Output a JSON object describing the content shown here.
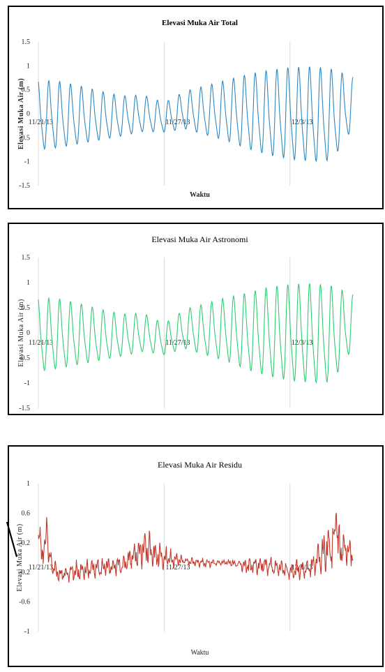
{
  "chart_data": [
    {
      "type": "line",
      "title": "Elevasi Muka Air Total",
      "xlabel": "Waktu",
      "ylabel": "Elevasi Muka Air (m)",
      "ylim": [
        -1.5,
        1.5
      ],
      "yticks": [
        "1.5",
        "1",
        "0.5",
        "0",
        "-0.5",
        "-1",
        "-1.5"
      ],
      "xtick_labels": [
        "11/21/13",
        "11/27/13",
        "12/3/13"
      ],
      "x_start": "11/21/13",
      "x_end": "12/6/13",
      "color": "#2e86c1",
      "grid": "vertical",
      "series": [
        {
          "x": [
            "11/21/13",
            "11/22/13",
            "11/23/13",
            "11/24/13",
            "11/25/13",
            "11/26/13",
            "11/27/13",
            "11/28/13",
            "11/29/13",
            "11/30/13",
            "12/1/13",
            "12/2/13",
            "12/3/13",
            "12/4/13",
            "12/5/13",
            "12/6/13"
          ],
          "daily_high": [
            0.75,
            0.72,
            0.62,
            0.5,
            0.4,
            0.42,
            0.25,
            0.5,
            0.62,
            0.75,
            0.88,
            0.97,
            1.03,
            1.05,
            1.0,
            0.8
          ],
          "daily_low": [
            -0.9,
            -0.85,
            -0.75,
            -0.65,
            -0.55,
            -0.45,
            -0.45,
            -0.4,
            -0.55,
            -0.7,
            -0.9,
            -1.05,
            -1.15,
            -1.2,
            -1.18,
            -0.4
          ]
        }
      ]
    },
    {
      "type": "line",
      "title": "Elevasi Muka Air Astronomi",
      "xlabel": "Waktu",
      "ylabel": "Elevasi Muka Air (m)",
      "ylim": [
        -1.5,
        1.5
      ],
      "yticks": [
        "1.5",
        "1",
        "0.5",
        "0",
        "-0.5",
        "-1",
        "-1.5"
      ],
      "xtick_labels": [
        "11/21/13",
        "11/27/13",
        "12/3/13"
      ],
      "x_start": "11/21/13",
      "x_end": "12/6/13",
      "color": "#2ecc71",
      "grid": "vertical",
      "series": [
        {
          "x": [
            "11/21/13",
            "11/22/13",
            "11/23/13",
            "11/24/13",
            "11/25/13",
            "11/26/13",
            "11/27/13",
            "11/28/13",
            "11/29/13",
            "11/30/13",
            "12/1/13",
            "12/2/13",
            "12/3/13",
            "12/4/13",
            "12/5/13",
            "12/6/13"
          ],
          "daily_high": [
            0.75,
            0.72,
            0.62,
            0.5,
            0.4,
            0.42,
            0.2,
            0.5,
            0.62,
            0.75,
            0.85,
            0.97,
            1.03,
            1.05,
            1.0,
            0.8
          ],
          "daily_low": [
            -0.92,
            -0.85,
            -0.75,
            -0.65,
            -0.55,
            -0.45,
            -0.5,
            -0.4,
            -0.55,
            -0.7,
            -0.9,
            -1.05,
            -1.15,
            -1.2,
            -1.18,
            -0.4
          ]
        }
      ]
    },
    {
      "type": "line",
      "title": "Elevasi Muka Air Residu",
      "xlabel": "Waktu",
      "ylabel": "Elevasi Muka Air (m)",
      "ylim": [
        -1,
        1
      ],
      "yticks": [
        "1",
        "0.6",
        "0.2",
        "-0.2",
        "-0.6",
        "-1"
      ],
      "xtick_labels": [
        "11/21/13",
        "11/27/13",
        "12/3/13"
      ],
      "x_start": "11/21/13",
      "x_end": "12/6/13",
      "color": "#c0392b",
      "grid": "vertical",
      "series": [
        {
          "x": [
            "11/21/13",
            "11/22/13",
            "11/23/13",
            "11/24/13",
            "11/25/13",
            "11/26/13",
            "11/27/13",
            "11/28/13",
            "11/29/13",
            "11/30/13",
            "12/1/13",
            "12/2/13",
            "12/3/13",
            "12/4/13",
            "12/5/13",
            "12/6/13"
          ],
          "daily_max": [
            0.58,
            -0.05,
            0.05,
            0.08,
            0.1,
            0.43,
            0.25,
            0.05,
            0.05,
            0.02,
            0.08,
            0.1,
            0.0,
            0.1,
            0.68,
            0.3
          ],
          "daily_min": [
            -0.15,
            -0.32,
            -0.3,
            -0.25,
            -0.2,
            -0.1,
            -0.15,
            -0.05,
            -0.1,
            -0.05,
            -0.2,
            -0.2,
            -0.28,
            -0.25,
            -0.2,
            -0.1
          ]
        }
      ]
    }
  ]
}
